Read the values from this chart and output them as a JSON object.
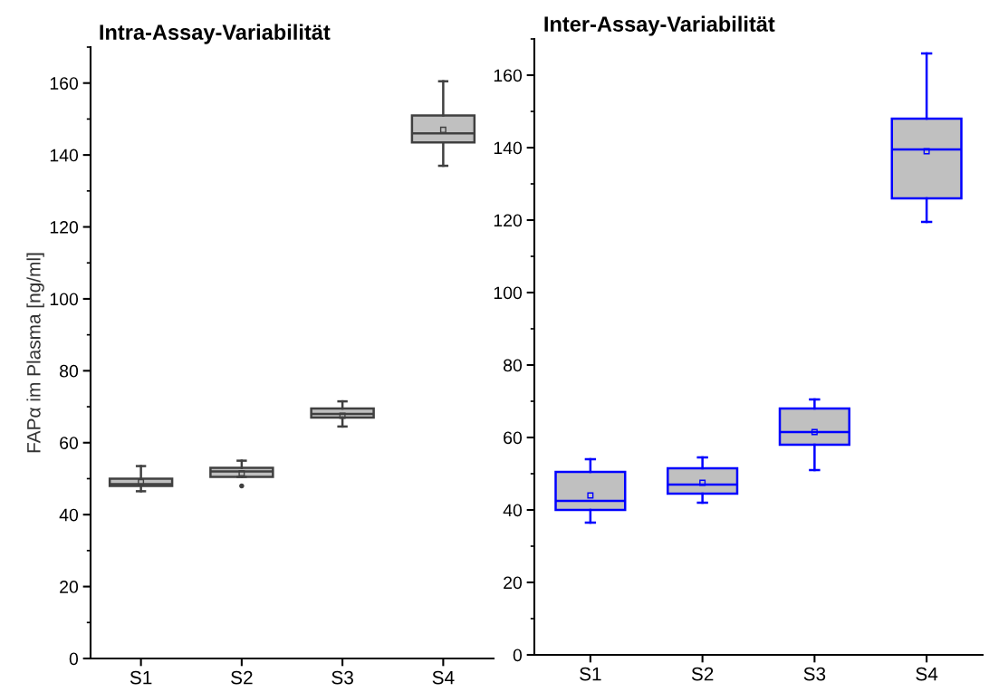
{
  "chart_data": [
    {
      "type": "box",
      "title": "Intra-Assay-Variabilität",
      "ylabel": "FAPα im Plasma [ng/ml]",
      "categories": [
        "S1",
        "S2",
        "S3",
        "S4"
      ],
      "ylim": [
        0,
        170
      ],
      "yticks": [
        0,
        20,
        40,
        60,
        80,
        100,
        120,
        140,
        160
      ],
      "grid": false,
      "series": [
        {
          "color": "#404040",
          "boxes": [
            {
              "low": 46.5,
              "q1": 48,
              "median": 48.5,
              "q3": 50,
              "high": 53.5,
              "mean": 49
            },
            {
              "low": 50.5,
              "q1": 50.5,
              "median": 52,
              "q3": 53,
              "high": 55,
              "mean": 51.5,
              "outliers": [
                48
              ]
            },
            {
              "low": 64.5,
              "q1": 67,
              "median": 68,
              "q3": 69.5,
              "high": 71.5,
              "mean": 67.5
            },
            {
              "low": 137,
              "q1": 143.5,
              "median": 146,
              "q3": 151,
              "high": 160.5,
              "mean": 147
            }
          ]
        }
      ]
    },
    {
      "type": "box",
      "title": "Inter-Assay-Variabilität",
      "categories": [
        "S1",
        "S2",
        "S3",
        "S4"
      ],
      "ylim": [
        0,
        170
      ],
      "yticks": [
        0,
        20,
        40,
        60,
        80,
        100,
        120,
        140,
        160
      ],
      "grid": false,
      "series": [
        {
          "color": "#0000ff",
          "boxes": [
            {
              "low": 36.5,
              "q1": 40,
              "median": 42.5,
              "q3": 50.5,
              "high": 54,
              "mean": 44
            },
            {
              "low": 42,
              "q1": 44.5,
              "median": 47,
              "q3": 51.5,
              "high": 54.5,
              "mean": 47.5
            },
            {
              "low": 51,
              "q1": 58,
              "median": 61.5,
              "q3": 68,
              "high": 70.5,
              "mean": 61.5
            },
            {
              "low": 119.5,
              "q1": 126,
              "median": 139.5,
              "q3": 148,
              "high": 166,
              "mean": 139
            }
          ]
        }
      ]
    }
  ]
}
